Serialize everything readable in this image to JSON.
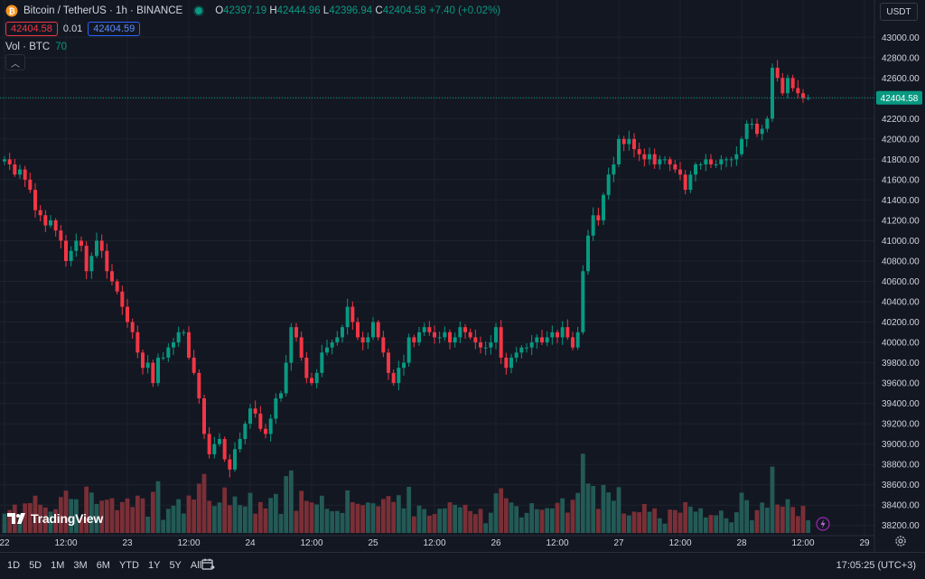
{
  "header": {
    "symbol": "Bitcoin / TetherUS · 1h · BINANCE",
    "ohlc": {
      "o_label": "O",
      "o": "42397.19",
      "h_label": "H",
      "h": "42444.96",
      "l_label": "L",
      "l": "42396.94",
      "c_label": "C",
      "c": "42404.58",
      "change": "+7.40 (+0.02%)"
    },
    "sell_price": "42404.58",
    "spread": "0.01",
    "buy_price": "42404.59",
    "volume_label": "Vol · BTC",
    "volume_value": "70",
    "collapse_icon": "chevron-up-icon"
  },
  "currency_button": "USDT",
  "last_price_badge": "42404.58",
  "brand": "TradingView",
  "toolbar": {
    "ranges": [
      "1D",
      "5D",
      "1M",
      "3M",
      "6M",
      "YTD",
      "1Y",
      "5Y",
      "All"
    ],
    "calendar_icon": "calendar-goto-icon",
    "time": "17:05:25 (UTC+3)"
  },
  "colors": {
    "bg": "#131722",
    "up": "#089981",
    "down": "#f23645",
    "up_vol": "#235a56",
    "down_vol": "#7a2f36",
    "grid": "#1e222d",
    "text": "#d1d4dc"
  },
  "chart_data": {
    "type": "candlestick",
    "y_ticks": [
      "43000.00",
      "42800.00",
      "42600.00",
      "42400.00",
      "42200.00",
      "42000.00",
      "41800.00",
      "41600.00",
      "41400.00",
      "41200.00",
      "41000.00",
      "40800.00",
      "40600.00",
      "40400.00",
      "40200.00",
      "40000.00",
      "39800.00",
      "39600.00",
      "39400.00",
      "39200.00",
      "39000.00",
      "38800.00",
      "38600.00",
      "38400.00",
      "38200.00"
    ],
    "ylim": [
      38100,
      43100
    ],
    "x_ticks": [
      "22",
      "12:00",
      "23",
      "12:00",
      "24",
      "12:00",
      "25",
      "12:00",
      "26",
      "12:00",
      "27",
      "12:00",
      "28",
      "12:00",
      "29"
    ],
    "x_tick_hours": [
      0,
      12,
      24,
      36,
      48,
      60,
      72,
      84,
      96,
      108,
      120,
      132,
      144,
      156,
      168
    ],
    "closes": [
      41800,
      41750,
      41650,
      41700,
      41600,
      41500,
      41300,
      41250,
      41150,
      41200,
      41100,
      41000,
      40800,
      40900,
      41000,
      40950,
      40700,
      40850,
      41000,
      40900,
      40700,
      40600,
      40500,
      40350,
      40200,
      40100,
      39900,
      39750,
      39800,
      39600,
      39850,
      39850,
      39950,
      40000,
      40100,
      40100,
      39850,
      39700,
      39450,
      39100,
      38900,
      39000,
      39050,
      38850,
      38750,
      38950,
      39050,
      39200,
      39350,
      39300,
      39150,
      39100,
      39250,
      39450,
      39500,
      39800,
      40150,
      40050,
      39850,
      39650,
      39600,
      39700,
      39900,
      39950,
      40000,
      40050,
      40150,
      40350,
      40200,
      40050,
      40000,
      40050,
      40200,
      40050,
      39900,
      39700,
      39600,
      39750,
      39800,
      40050,
      40000,
      40100,
      40150,
      40100,
      40050,
      40050,
      40100,
      40000,
      40050,
      40150,
      40100,
      40050,
      40000,
      39950,
      39950,
      40000,
      40150,
      39850,
      39750,
      39850,
      39900,
      39950,
      39950,
      40000,
      40050,
      40000,
      40050,
      40100,
      40050,
      40150,
      40050,
      39950,
      40100,
      40700,
      41050,
      41250,
      41200,
      41450,
      41650,
      41750,
      42000,
      41950,
      42000,
      41900,
      41850,
      41800,
      41850,
      41750,
      41800,
      41800,
      41750,
      41700,
      41650,
      41500,
      41650,
      41750,
      41750,
      41800,
      41750,
      41750,
      41800,
      41800,
      41800,
      41850,
      42000,
      42150,
      42150,
      42050,
      42100,
      42200,
      42700,
      42600,
      42450,
      42600,
      42500,
      42450,
      42400,
      42404.58
    ],
    "volume_label": "Vol · BTC"
  }
}
